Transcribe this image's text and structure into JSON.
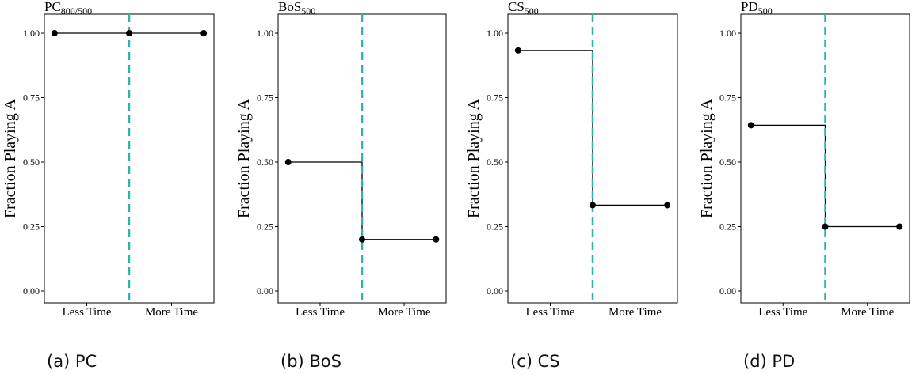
{
  "chart_data": [
    {
      "type": "line",
      "caption": "(a) PC",
      "title": "PC",
      "title_subscript": "800/500",
      "ylabel": "Fraction Playing A",
      "ylim": [
        0,
        1
      ],
      "yticks": [
        "0.00",
        "0.25",
        "0.50",
        "0.75",
        "1.00"
      ],
      "categories": [
        "Less Time",
        "More Time"
      ],
      "x": [
        0,
        0.5,
        1
      ],
      "values": [
        1.0,
        1.0,
        1.0
      ],
      "step": [
        1.0,
        1.0
      ],
      "divider": "dashed vertical line at center",
      "grid": false
    },
    {
      "type": "line",
      "caption": "(b) BoS",
      "title": "BoS",
      "title_subscript": "500",
      "ylabel": "Fraction Playing A",
      "ylim": [
        0,
        1
      ],
      "yticks": [
        "0.00",
        "0.25",
        "0.50",
        "0.75",
        "1.00"
      ],
      "categories": [
        "Less Time",
        "More Time"
      ],
      "x": [
        0,
        0.5,
        1
      ],
      "values": [
        0.5,
        0.2,
        0.2
      ],
      "step": [
        0.5,
        0.2
      ],
      "divider": "dashed vertical line at center",
      "grid": false
    },
    {
      "type": "line",
      "caption": "(c) CS",
      "title": "CS",
      "title_subscript": "500",
      "ylabel": "Fraction Playing A",
      "ylim": [
        0,
        1
      ],
      "yticks": [
        "0.00",
        "0.25",
        "0.50",
        "0.75",
        "1.00"
      ],
      "categories": [
        "Less Time",
        "More Time"
      ],
      "x": [
        0,
        0.5,
        1
      ],
      "values": [
        0.933,
        0.333,
        0.333
      ],
      "step": [
        0.933,
        0.333
      ],
      "divider": "dashed vertical line at center",
      "grid": false
    },
    {
      "type": "line",
      "caption": "(d) PD",
      "title": "PD",
      "title_subscript": "500",
      "ylabel": "Fraction Playing A",
      "ylim": [
        0,
        1
      ],
      "yticks": [
        "0.00",
        "0.25",
        "0.50",
        "0.75",
        "1.00"
      ],
      "categories": [
        "Less Time",
        "More Time"
      ],
      "x": [
        0,
        0.5,
        1
      ],
      "values": [
        0.643,
        0.25,
        0.25
      ],
      "step": [
        0.643,
        0.25
      ],
      "divider": "dashed vertical line at center",
      "grid": false
    }
  ],
  "colors": {
    "divider": "#2bb5a8",
    "line": "#000000",
    "axis": "#000000"
  }
}
